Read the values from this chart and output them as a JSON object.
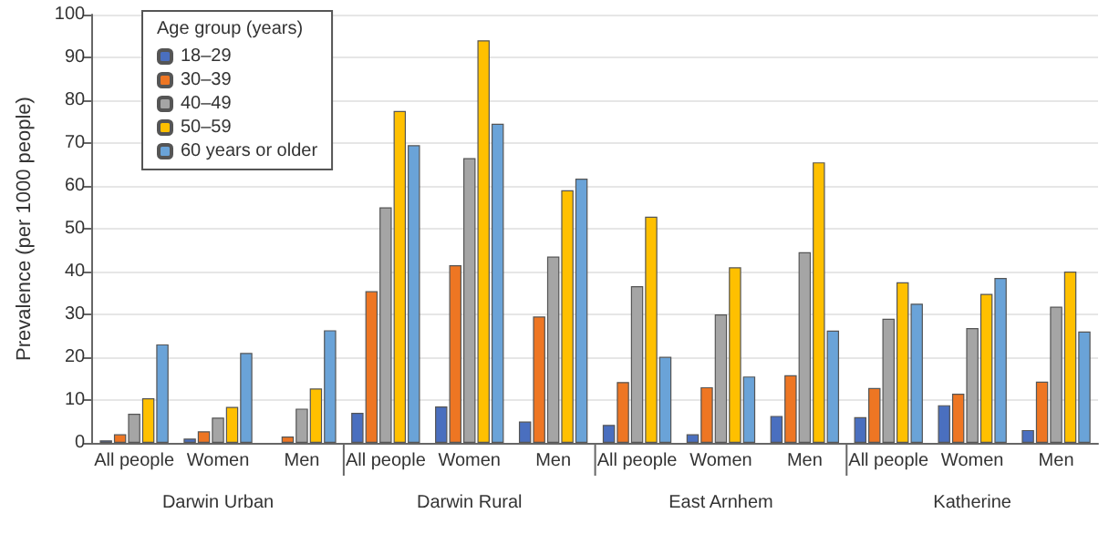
{
  "chart_data": {
    "type": "bar",
    "ylabel": "Prevalence (per 1000 people)",
    "legend_title": "Age group (years)",
    "categories": [
      "All people",
      "Women",
      "Men",
      "All people",
      "Women",
      "Men",
      "All people",
      "Women",
      "Men",
      "All people",
      "Women",
      "Men"
    ],
    "series": [
      {
        "name": "18–29",
        "color": "#4a6fbf",
        "values": [
          0.6,
          1,
          null,
          7,
          8.5,
          5,
          4.2,
          2,
          6.3,
          6,
          8.8,
          3
        ]
      },
      {
        "name": "30–39",
        "color": "#ee7623",
        "values": [
          2,
          2.7,
          1.5,
          35.4,
          41.5,
          29.5,
          14.2,
          13,
          15.8,
          12.8,
          11.5,
          14.3
        ]
      },
      {
        "name": "40–49",
        "color": "#a5a5a5",
        "values": [
          6.8,
          5.9,
          8,
          55,
          66.5,
          43.5,
          36.6,
          30,
          44.5,
          29,
          26.8,
          31.8
        ]
      },
      {
        "name": "50–59",
        "color": "#ffc000",
        "values": [
          10.4,
          8.4,
          12.7,
          77.5,
          94,
          59,
          52.8,
          41,
          65.5,
          37.5,
          34.8,
          40
        ]
      },
      {
        "name": "60 years or older",
        "color": "#6aa3d8",
        "values": [
          23,
          21,
          26.3,
          69.5,
          74.5,
          61.7,
          20.1,
          15.5,
          26.2,
          32.5,
          38.5,
          26
        ]
      }
    ],
    "annotations": [
      "Darwin Urban",
      "Darwin Rural",
      "East Arnhem",
      "Katherine"
    ],
    "ylim": [
      0,
      100
    ],
    "yticks": [
      0,
      10,
      20,
      30,
      40,
      50,
      60,
      70,
      80,
      90,
      100
    ],
    "grid": "y",
    "legend": "top left"
  }
}
